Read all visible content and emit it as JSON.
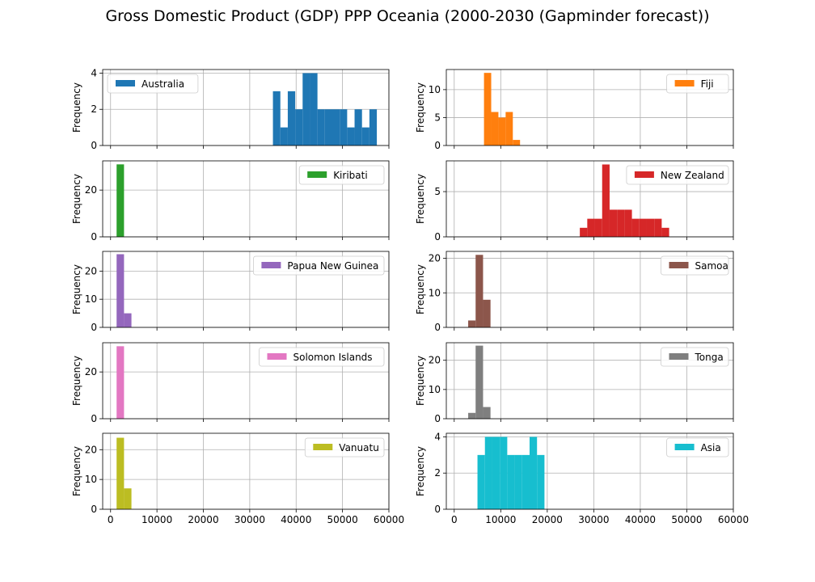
{
  "figure": {
    "title": "Gross Domestic Product (GDP) PPP Oceania (2000-2030 (Gapminder forecast))"
  },
  "chart_data": [
    {
      "type": "histogram",
      "series_name": "Australia",
      "color": "#1f77b4",
      "ylabel": "Frequency",
      "xlim": [
        -1700,
        60000
      ],
      "ylim": [
        0,
        4.2
      ],
      "yticks": [
        0,
        2,
        4
      ],
      "xticks": [
        0,
        10000,
        20000,
        30000,
        40000,
        50000,
        60000
      ],
      "legend": "top-left",
      "bins": [
        [
          35000,
          36600,
          3
        ],
        [
          36600,
          38200,
          1
        ],
        [
          38200,
          39800,
          3
        ],
        [
          39800,
          41400,
          2
        ],
        [
          41400,
          43000,
          4
        ],
        [
          43000,
          44600,
          4
        ],
        [
          44600,
          46200,
          2
        ],
        [
          46200,
          47800,
          2
        ],
        [
          47800,
          49400,
          2
        ],
        [
          49400,
          51000,
          2
        ],
        [
          51000,
          52600,
          1
        ],
        [
          52600,
          54200,
          2
        ],
        [
          54200,
          55800,
          1
        ],
        [
          55800,
          57400,
          2
        ]
      ]
    },
    {
      "type": "histogram",
      "series_name": "Fiji",
      "color": "#ff7f0e",
      "ylabel": "Frequency",
      "xlim": [
        -1700,
        60000
      ],
      "ylim": [
        0,
        13.6
      ],
      "yticks": [
        0,
        5,
        10
      ],
      "xticks": [
        0,
        10000,
        20000,
        30000,
        40000,
        50000,
        60000
      ],
      "legend": "top-right",
      "bins": [
        [
          6400,
          7950,
          13
        ],
        [
          7950,
          9500,
          6
        ],
        [
          9500,
          11050,
          5
        ],
        [
          11050,
          12600,
          6
        ],
        [
          12600,
          14150,
          1
        ]
      ]
    },
    {
      "type": "histogram",
      "series_name": "Kiribati",
      "color": "#2ca02c",
      "ylabel": "Frequency",
      "xlim": [
        -1700,
        60000
      ],
      "ylim": [
        0,
        32.5
      ],
      "yticks": [
        0,
        20
      ],
      "xticks": [
        0,
        10000,
        20000,
        30000,
        40000,
        50000,
        60000
      ],
      "legend": "top-right",
      "bins": [
        [
          1300,
          2900,
          31
        ]
      ]
    },
    {
      "type": "histogram",
      "series_name": "New Zealand",
      "color": "#d62728",
      "ylabel": "Frequency",
      "xlim": [
        -1700,
        60000
      ],
      "ylim": [
        0,
        8.4
      ],
      "yticks": [
        0,
        5
      ],
      "xticks": [
        0,
        10000,
        20000,
        30000,
        40000,
        50000,
        60000
      ],
      "legend": "top-right",
      "bins": [
        [
          27000,
          28600,
          1
        ],
        [
          28600,
          30200,
          2
        ],
        [
          30200,
          31800,
          2
        ],
        [
          31800,
          33400,
          8
        ],
        [
          33400,
          35000,
          3
        ],
        [
          35000,
          36600,
          3
        ],
        [
          36600,
          38200,
          3
        ],
        [
          38200,
          39800,
          2
        ],
        [
          39800,
          41400,
          2
        ],
        [
          41400,
          43000,
          2
        ],
        [
          43000,
          44600,
          2
        ],
        [
          44600,
          46200,
          1
        ]
      ]
    },
    {
      "type": "histogram",
      "series_name": "Papua New Guinea",
      "color": "#9467bd",
      "ylabel": "Frequency",
      "xlim": [
        -1700,
        60000
      ],
      "ylim": [
        0,
        27
      ],
      "yticks": [
        0,
        10,
        20
      ],
      "xticks": [
        0,
        10000,
        20000,
        30000,
        40000,
        50000,
        60000
      ],
      "legend": "top-right",
      "bins": [
        [
          1300,
          2900,
          26
        ],
        [
          2900,
          4500,
          5
        ]
      ]
    },
    {
      "type": "histogram",
      "series_name": "Samoa",
      "color": "#8c564b",
      "ylabel": "Frequency",
      "xlim": [
        -1700,
        60000
      ],
      "ylim": [
        0,
        22
      ],
      "yticks": [
        0,
        10,
        20
      ],
      "xticks": [
        0,
        10000,
        20000,
        30000,
        40000,
        50000,
        60000
      ],
      "legend": "top-right",
      "bins": [
        [
          3000,
          4600,
          2
        ],
        [
          4600,
          6200,
          21
        ],
        [
          6200,
          7800,
          8
        ]
      ]
    },
    {
      "type": "histogram",
      "series_name": "Solomon Islands",
      "color": "#e377c2",
      "ylabel": "Frequency",
      "xlim": [
        -1700,
        60000
      ],
      "ylim": [
        0,
        32.5
      ],
      "yticks": [
        0,
        20
      ],
      "xticks": [
        0,
        10000,
        20000,
        30000,
        40000,
        50000,
        60000
      ],
      "legend": "top-right",
      "bins": [
        [
          1300,
          2900,
          31
        ]
      ]
    },
    {
      "type": "histogram",
      "series_name": "Tonga",
      "color": "#7f7f7f",
      "ylabel": "Frequency",
      "xlim": [
        -1700,
        60000
      ],
      "ylim": [
        0,
        26
      ],
      "yticks": [
        0,
        10,
        20
      ],
      "xticks": [
        0,
        10000,
        20000,
        30000,
        40000,
        50000,
        60000
      ],
      "legend": "top-right",
      "bins": [
        [
          3000,
          4600,
          2
        ],
        [
          4600,
          6200,
          25
        ],
        [
          6200,
          7800,
          4
        ]
      ]
    },
    {
      "type": "histogram",
      "series_name": "Vanuatu",
      "color": "#bcbd22",
      "ylabel": "Frequency",
      "xlim": [
        -1700,
        60000
      ],
      "ylim": [
        0,
        25.5
      ],
      "yticks": [
        0,
        10,
        20
      ],
      "xticks": [
        0,
        10000,
        20000,
        30000,
        40000,
        50000,
        60000
      ],
      "legend": "top-right",
      "bins": [
        [
          1300,
          2900,
          24
        ],
        [
          2900,
          4500,
          7
        ]
      ]
    },
    {
      "type": "histogram",
      "series_name": "Asia",
      "color": "#17becf",
      "ylabel": "Frequency",
      "xlim": [
        -1700,
        60000
      ],
      "ylim": [
        0,
        4.2
      ],
      "yticks": [
        0,
        2,
        4
      ],
      "xticks": [
        0,
        10000,
        20000,
        30000,
        40000,
        50000,
        60000
      ],
      "legend": "top-right",
      "bins": [
        [
          5000,
          6600,
          3
        ],
        [
          6600,
          8200,
          4
        ],
        [
          8200,
          9800,
          4
        ],
        [
          9800,
          11400,
          4
        ],
        [
          11400,
          13000,
          3
        ],
        [
          13000,
          14600,
          3
        ],
        [
          14600,
          16200,
          3
        ],
        [
          16200,
          17800,
          4
        ],
        [
          17800,
          19400,
          3
        ]
      ]
    }
  ]
}
